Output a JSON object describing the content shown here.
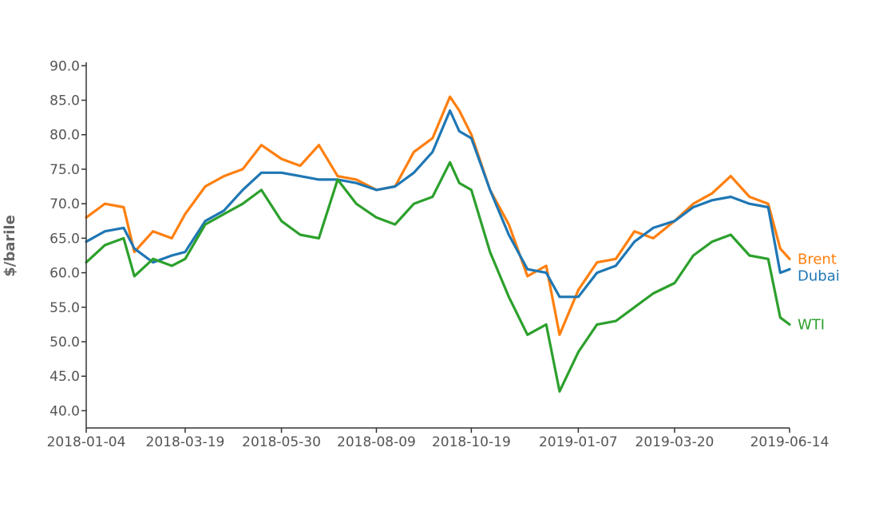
{
  "chart_data": {
    "type": "line",
    "title": "",
    "xlabel": "",
    "ylabel": "$/barile",
    "ylim": [
      37.5,
      90.5
    ],
    "y_ticks": [
      "40.0",
      "45.0",
      "50.0",
      "55.0",
      "60.0",
      "65.0",
      "70.0",
      "75.0",
      "80.0",
      "85.0",
      "90.0"
    ],
    "x_ticks": [
      "2018-01-04",
      "2018-03-19",
      "2018-05-30",
      "2018-08-09",
      "2018-10-19",
      "2019-01-07",
      "2019-03-20",
      "2019-06-14"
    ],
    "x_range": [
      "2018-01-04",
      "2019-06-14"
    ],
    "grid": false,
    "legend": "inline labels at right end of each line",
    "x": [
      "2018-01-04",
      "2018-01-18",
      "2018-02-01",
      "2018-02-09",
      "2018-02-23",
      "2018-03-09",
      "2018-03-19",
      "2018-04-03",
      "2018-04-17",
      "2018-05-01",
      "2018-05-15",
      "2018-05-30",
      "2018-06-13",
      "2018-06-27",
      "2018-07-11",
      "2018-07-25",
      "2018-08-09",
      "2018-08-23",
      "2018-09-06",
      "2018-09-20",
      "2018-10-03",
      "2018-10-10",
      "2018-10-19",
      "2018-11-02",
      "2018-11-16",
      "2018-11-30",
      "2018-12-14",
      "2018-12-24",
      "2019-01-07",
      "2019-01-21",
      "2019-02-04",
      "2019-02-18",
      "2019-03-04",
      "2019-03-20",
      "2019-04-03",
      "2019-04-17",
      "2019-05-01",
      "2019-05-15",
      "2019-05-29",
      "2019-06-07",
      "2019-06-14"
    ],
    "series": [
      {
        "name": "Brent",
        "color": "#ff7f0e",
        "values": [
          68.0,
          70.0,
          69.5,
          63.0,
          66.0,
          65.0,
          68.5,
          72.5,
          74.0,
          75.0,
          78.5,
          76.5,
          75.5,
          78.5,
          74.0,
          73.5,
          72.0,
          72.5,
          77.5,
          79.5,
          85.5,
          83.5,
          80.0,
          72.0,
          67.0,
          59.5,
          61.0,
          51.0,
          57.5,
          61.5,
          62.0,
          66.0,
          65.0,
          67.5,
          70.0,
          71.5,
          74.0,
          71.0,
          70.0,
          63.5,
          62.0
        ]
      },
      {
        "name": "Dubai",
        "color": "#1f77b4",
        "values": [
          64.5,
          66.0,
          66.5,
          63.5,
          61.5,
          62.5,
          63.0,
          67.5,
          69.0,
          72.0,
          74.5,
          74.5,
          74.0,
          73.5,
          73.5,
          73.0,
          72.0,
          72.5,
          74.5,
          77.5,
          83.5,
          80.5,
          79.5,
          72.0,
          65.5,
          60.5,
          60.0,
          56.5,
          56.5,
          60.0,
          61.0,
          64.5,
          66.5,
          67.5,
          69.5,
          70.5,
          71.0,
          70.0,
          69.5,
          60.0,
          60.5
        ]
      },
      {
        "name": "WTI",
        "color": "#2ca02c",
        "values": [
          61.5,
          64.0,
          65.0,
          59.5,
          62.0,
          61.0,
          62.0,
          67.0,
          68.5,
          70.0,
          72.0,
          67.5,
          65.5,
          65.0,
          73.5,
          70.0,
          68.0,
          67.0,
          70.0,
          71.0,
          76.0,
          73.0,
          72.0,
          63.0,
          56.5,
          51.0,
          52.5,
          42.8,
          48.5,
          52.5,
          53.0,
          55.0,
          57.0,
          58.5,
          62.5,
          64.5,
          65.5,
          62.5,
          62.0,
          53.5,
          52.5
        ]
      }
    ]
  }
}
